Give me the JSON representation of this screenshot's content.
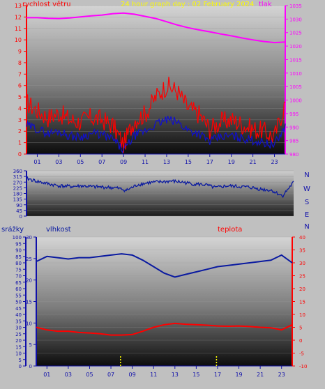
{
  "colors": {
    "wind_avg": "#1010cc",
    "wind_gust": "#ff0000",
    "pressure": "#ff00ff",
    "direction": "#0a1aa0",
    "humidity": "#0a1aa0",
    "temperature": "#ff0000",
    "rain": "#ffff00",
    "title": "#ffff00"
  },
  "header": {
    "title": "24 hour graph day : 02 February 2024",
    "left_label": "rychlost větru",
    "right_label": "tlak"
  },
  "bottom_labels": {
    "rain": "srážky",
    "humidity": "vlhkost",
    "temperature": "teplota"
  },
  "chart_data": [
    {
      "type": "line",
      "name": "wind-pressure",
      "x_ticks": [
        "01",
        "03",
        "05",
        "07",
        "09",
        "11",
        "13",
        "15",
        "17",
        "19",
        "21",
        "23"
      ],
      "x_range": [
        0,
        24
      ],
      "left_axis": {
        "label": "rychlost větru",
        "ylim": [
          0,
          13
        ],
        "ticks": [
          0,
          1,
          2,
          3,
          4,
          5,
          6,
          7,
          8,
          9,
          10,
          11,
          12,
          13
        ]
      },
      "right_axis": {
        "label": "tlak",
        "ylim": [
          980,
          1035
        ],
        "ticks": [
          980,
          985,
          990,
          995,
          1000,
          1005,
          1010,
          1015,
          1020,
          1025,
          1030,
          1035
        ]
      },
      "series": [
        {
          "role": "pressure",
          "axis": "right",
          "x": [
            0,
            1,
            2,
            3,
            4,
            5,
            6,
            7,
            8,
            9,
            10,
            11,
            12,
            13,
            14,
            15,
            16,
            17,
            18,
            19,
            20,
            21,
            22,
            23,
            24
          ],
          "y": [
            1030.5,
            1030.5,
            1030.3,
            1030.2,
            1030.4,
            1030.8,
            1031.2,
            1031.5,
            1032.0,
            1032.2,
            1031.8,
            1031.0,
            1030.2,
            1029.0,
            1027.8,
            1026.8,
            1026.0,
            1025.3,
            1024.5,
            1023.8,
            1023.0,
            1022.3,
            1021.7,
            1021.3,
            1021.5
          ]
        },
        {
          "role": "wind-gust",
          "axis": "left",
          "x": [
            0,
            1,
            2,
            3,
            4,
            5,
            6,
            7,
            8,
            9,
            10,
            11,
            12,
            13,
            14,
            15,
            16,
            17,
            18,
            19,
            20,
            21,
            22,
            23,
            24
          ],
          "y": [
            4.5,
            3.8,
            3.2,
            3.6,
            3.0,
            2.8,
            3.2,
            3.0,
            2.5,
            0.8,
            3.0,
            3.5,
            5.0,
            6.0,
            5.5,
            4.0,
            3.5,
            2.2,
            2.8,
            3.0,
            2.6,
            2.2,
            2.0,
            1.5,
            4.5
          ]
        },
        {
          "role": "wind-avg",
          "axis": "left",
          "x": [
            0,
            1,
            2,
            3,
            4,
            5,
            6,
            7,
            8,
            9,
            10,
            11,
            12,
            13,
            14,
            15,
            16,
            17,
            18,
            19,
            20,
            21,
            22,
            23,
            24
          ],
          "y": [
            2.5,
            2.2,
            1.8,
            2.0,
            1.6,
            1.5,
            1.8,
            1.7,
            1.3,
            0.3,
            1.6,
            2.0,
            2.6,
            3.0,
            2.8,
            2.1,
            1.8,
            1.1,
            1.5,
            1.6,
            1.4,
            1.2,
            1.0,
            0.8,
            2.4
          ]
        }
      ]
    },
    {
      "type": "line",
      "name": "wind-direction",
      "x_range": [
        0,
        24
      ],
      "ylim": [
        0,
        360
      ],
      "y_ticks": [
        0,
        45,
        90,
        135,
        180,
        225,
        270,
        315,
        360
      ],
      "right_labels": [
        "N",
        "W",
        "S",
        "E",
        "N"
      ],
      "series": [
        {
          "role": "direction",
          "x": [
            0,
            1,
            2,
            3,
            4,
            5,
            6,
            7,
            8,
            9,
            10,
            11,
            12,
            13,
            14,
            15,
            16,
            17,
            18,
            19,
            20,
            21,
            22,
            23,
            24
          ],
          "y": [
            300,
            275,
            255,
            240,
            235,
            240,
            232,
            230,
            225,
            205,
            250,
            265,
            272,
            278,
            270,
            255,
            250,
            225,
            240,
            235,
            230,
            215,
            205,
            160,
            270
          ]
        }
      ]
    },
    {
      "type": "line",
      "name": "humidity-temperature-rain",
      "x_ticks": [
        "01",
        "03",
        "05",
        "07",
        "09",
        "11",
        "13",
        "15",
        "17",
        "19",
        "21",
        "23"
      ],
      "x_range": [
        0,
        24
      ],
      "rain_axis": {
        "label": "srážky",
        "ylim": [
          0,
          100
        ],
        "ticks": [
          0,
          5,
          10,
          15,
          20,
          25,
          30,
          35,
          40,
          45,
          50,
          55,
          60,
          65,
          70,
          75,
          80,
          85,
          90,
          95,
          100
        ]
      },
      "humidity_axis": {
        "label": "vlhkost",
        "ylim": [
          0,
          30
        ],
        "ticks": [
          0,
          5,
          10,
          15,
          20,
          25,
          30
        ]
      },
      "temperature_axis": {
        "label": "teplota",
        "ylim": [
          -10,
          40
        ],
        "ticks": [
          -10,
          -5,
          0,
          5,
          10,
          15,
          20,
          25,
          30,
          35,
          40
        ]
      },
      "series": [
        {
          "role": "humidity",
          "x": [
            0,
            1,
            2,
            3,
            4,
            5,
            6,
            7,
            8,
            9,
            10,
            11,
            12,
            13,
            14,
            15,
            16,
            17,
            18,
            19,
            20,
            21,
            22,
            23,
            24
          ],
          "y": [
            81,
            85,
            84,
            83,
            84,
            84,
            85,
            86,
            87,
            86,
            82,
            77,
            72,
            69,
            71,
            73,
            75,
            77,
            78,
            79,
            80,
            81,
            82,
            86,
            80
          ]
        },
        {
          "role": "temperature",
          "x": [
            0,
            1,
            2,
            3,
            4,
            5,
            6,
            7,
            8,
            9,
            10,
            11,
            12,
            13,
            14,
            15,
            16,
            17,
            18,
            19,
            20,
            21,
            22,
            23,
            24
          ],
          "y": [
            5.0,
            4.0,
            3.5,
            3.5,
            3.0,
            2.8,
            2.5,
            2.0,
            2.0,
            2.2,
            3.5,
            5.0,
            6.0,
            6.5,
            6.2,
            6.0,
            5.8,
            5.5,
            5.4,
            5.5,
            5.3,
            5.0,
            4.8,
            4.0,
            6.0
          ]
        },
        {
          "role": "rain",
          "x": [
            7.9,
            16.9
          ],
          "y": [
            0,
            0
          ]
        }
      ]
    }
  ]
}
